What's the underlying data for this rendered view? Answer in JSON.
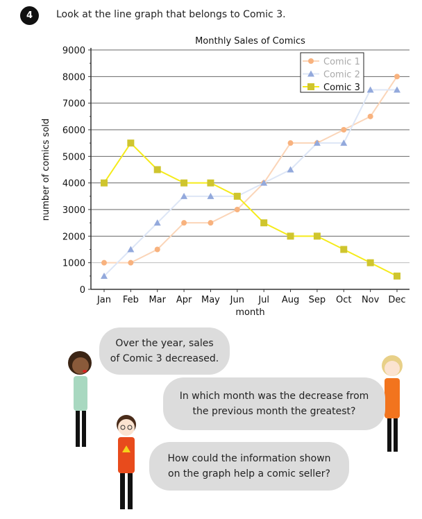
{
  "question": {
    "number": "4",
    "prompt": "Look at the line graph that belongs to Comic 3."
  },
  "chart_data": {
    "type": "line",
    "title": "Monthly Sales of Comics",
    "xlabel": "month",
    "ylabel": "number of comics sold",
    "ylim": [
      0,
      9000
    ],
    "yticks": [
      "0",
      "1000",
      "2000",
      "3000",
      "4000",
      "5000",
      "6000",
      "7000",
      "8000",
      "9000"
    ],
    "categories": [
      "Jan",
      "Feb",
      "Mar",
      "Apr",
      "May",
      "Jun",
      "Jul",
      "Aug",
      "Sep",
      "Oct",
      "Nov",
      "Dec"
    ],
    "grid": true,
    "legend_position": "top-right",
    "series": [
      {
        "name": "Comic 1",
        "marker": "circle",
        "color": "#fbd5b8",
        "marker_color": "#f8b27e",
        "values": [
          1000,
          1000,
          1500,
          2500,
          2500,
          3000,
          4000,
          5500,
          5500,
          6000,
          6500,
          8000
        ]
      },
      {
        "name": "Comic 2",
        "marker": "triangle",
        "color": "#dde6f6",
        "marker_color": "#93a9dc",
        "values": [
          500,
          1500,
          2500,
          3500,
          3500,
          3500,
          4000,
          4500,
          5500,
          5500,
          7500,
          7500
        ]
      },
      {
        "name": "Comic 3",
        "marker": "square",
        "color": "#f5eb1a",
        "marker_color": "#cfc52e",
        "values": [
          4000,
          5500,
          4500,
          4000,
          4000,
          3500,
          2500,
          2000,
          2000,
          1500,
          1000,
          500
        ]
      }
    ]
  },
  "speech": {
    "b1": [
      "Over the year, sales",
      "of Comic 3 decreased."
    ],
    "b2": [
      "In which month was the decrease from",
      "the previous month the greatest?"
    ],
    "b3": [
      "How could the information shown",
      "on the graph help a comic seller?"
    ]
  }
}
